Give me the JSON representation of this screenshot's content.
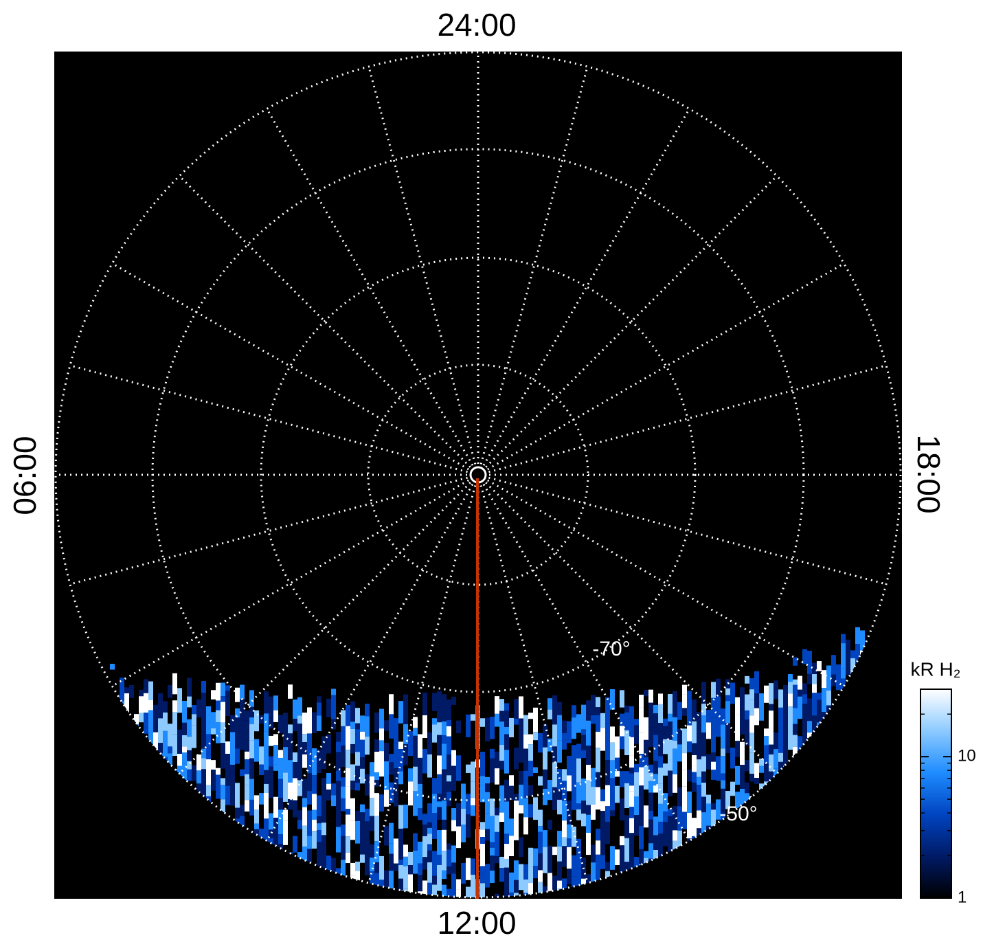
{
  "labels": {
    "top": "24:00",
    "bottom": "12:00",
    "left": "06:00",
    "right": "18:00"
  },
  "latitude_labels": [
    "-70°",
    "-50°"
  ],
  "colorbar": {
    "label": "kR H₂",
    "scale": "log",
    "lim": [
      1,
      30
    ],
    "ticks": [
      1,
      10
    ],
    "colors": [
      "#000000",
      "#001a66",
      "#0044c0",
      "#1e8cff",
      "#8ccaff",
      "#ffffff"
    ]
  }
}
